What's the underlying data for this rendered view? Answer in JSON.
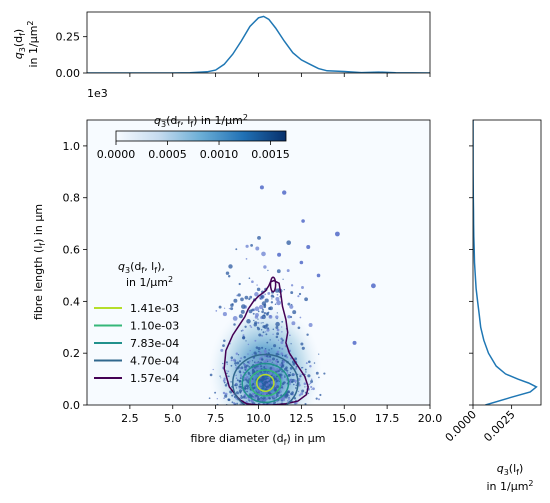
{
  "chart_data": [
    {
      "id": "top-marginal",
      "type": "line",
      "ylabel_line1": "q₃(d_f)",
      "ylabel_line2": "in 1/µm²",
      "ylabel_main": "q",
      "ylabel_sub": "3",
      "ylabel_paren": "(d",
      "ylabel_sub2": "f",
      "ylabel_close": ")",
      "ylabel_units": "in 1/µm",
      "ylabel_sup": "2",
      "xlim": [
        0,
        20
      ],
      "ylim": [
        0,
        0.42
      ],
      "yticks": [
        "0.00",
        "0.25"
      ],
      "ytick_values": [
        0,
        0.25
      ],
      "x": [
        0,
        5,
        6,
        7,
        7.5,
        8,
        8.5,
        9,
        9.5,
        10,
        10.3,
        10.6,
        11,
        11.5,
        12,
        12.5,
        13,
        13.5,
        14,
        15,
        16,
        17,
        18,
        19,
        20
      ],
      "y": [
        0,
        0,
        0.002,
        0.008,
        0.02,
        0.06,
        0.13,
        0.22,
        0.32,
        0.38,
        0.39,
        0.37,
        0.31,
        0.22,
        0.14,
        0.09,
        0.06,
        0.03,
        0.015,
        0.01,
        0.003,
        0.006,
        0.002,
        0.001,
        0
      ]
    },
    {
      "id": "right-marginal",
      "type": "line",
      "xlabel_main": "q",
      "xlabel_sub": "3",
      "xlabel_paren": "(l",
      "xlabel_sub2": "f",
      "xlabel_close": ")",
      "xlabel_units": "in 1/µm",
      "xlabel_sup": "2",
      "xticks": [
        "0.0000",
        "0.0025"
      ],
      "xtick_values": [
        0,
        0.0025
      ],
      "xlim": [
        0,
        0.0044
      ],
      "ylim": [
        0,
        1100
      ],
      "y": [
        0,
        30,
        50,
        70,
        85,
        100,
        120,
        150,
        200,
        250,
        300,
        350,
        400,
        450,
        500,
        550,
        600,
        650,
        700,
        750,
        800,
        850,
        900,
        1100
      ],
      "x": [
        0.0008,
        0.0025,
        0.0037,
        0.0041,
        0.0036,
        0.0029,
        0.0021,
        0.0015,
        0.001,
        0.0007,
        0.0005,
        0.0004,
        0.0003,
        0.0002,
        0.00015,
        0.0001,
        8e-05,
        5e-05,
        4e-05,
        3e-05,
        2e-05,
        1e-05,
        5e-06,
        0
      ]
    },
    {
      "id": "main-joint",
      "type": "heatmap",
      "xlabel": "fibre diameter (d",
      "xlabel_sub": "f",
      "xlabel_end": ") in µm",
      "ylabel": "fibre length (l",
      "ylabel_sub": "f",
      "ylabel_end": ") in µm",
      "y_multiplier": "1e3",
      "xlim": [
        0,
        20
      ],
      "ylim": [
        0,
        1.1
      ],
      "xticks": [
        "2.5",
        "5.0",
        "7.5",
        "10.0",
        "12.5",
        "15.0",
        "17.5",
        "20.0"
      ],
      "xtick_values": [
        2.5,
        5,
        7.5,
        10,
        12.5,
        15,
        17.5,
        20
      ],
      "yticks": [
        "0.0",
        "0.2",
        "0.4",
        "0.6",
        "0.8",
        "1.0"
      ],
      "ytick_values": [
        0,
        0.2,
        0.4,
        0.6,
        0.8,
        1.0
      ],
      "colorbar": {
        "title_main": "q",
        "title_sub": "3",
        "title_rest": "(d",
        "title_sub2": "f",
        "title_mid": ", l",
        "title_sub3": "f",
        "title_end": ") in 1/µm",
        "title_sup": "2",
        "ticks": [
          "0.0000",
          "0.0005",
          "0.0010",
          "0.0015"
        ],
        "tick_values": [
          0,
          0.0005,
          0.001,
          0.0015
        ],
        "range": [
          0,
          0.00165
        ]
      },
      "legend": {
        "title_main": "q",
        "title_sub": "3",
        "title_rest": "(d",
        "title_sub2": "f",
        "title_mid": ", l",
        "title_sub3": "f",
        "title_end": "),",
        "title_line2": "in 1/µm",
        "title_sup": "2",
        "placement": "left",
        "entries": [
          {
            "label": "1.41e-03",
            "color": "#b5de2b",
            "rx": 0.5,
            "ry": 0.032
          },
          {
            "label": "1.10e-03",
            "color": "#35b779",
            "rx": 0.9,
            "ry": 0.05
          },
          {
            "label": "7.83e-04",
            "color": "#21918c",
            "rx": 1.35,
            "ry": 0.075
          },
          {
            "label": "4.70e-04",
            "color": "#31688e",
            "rx": 1.9,
            "ry": 0.11
          },
          {
            "label": "1.57e-04",
            "color": "#440154",
            "rx": 0,
            "ry": 0
          }
        ]
      },
      "center": {
        "x": 10.4,
        "y": 0.085
      },
      "outer_contour": {
        "x": [
          8.9,
          8.3,
          8.0,
          8.1,
          8.5,
          8.9,
          9.2,
          9.4,
          9.7,
          10.0,
          10.4,
          10.6,
          10.7,
          10.9,
          11.2,
          11.3,
          11.4,
          11.6,
          11.7,
          11.6,
          11.8,
          12.2,
          12.7,
          12.9,
          12.8,
          12.3,
          11.6,
          10.8,
          10.0,
          9.3,
          8.9
        ],
        "y": [
          0.02,
          0.07,
          0.14,
          0.21,
          0.27,
          0.31,
          0.34,
          0.37,
          0.4,
          0.42,
          0.44,
          0.46,
          0.475,
          0.48,
          0.47,
          0.43,
          0.38,
          0.33,
          0.28,
          0.24,
          0.2,
          0.16,
          0.11,
          0.07,
          0.04,
          0.015,
          0.005,
          0.0,
          0.0,
          0.005,
          0.02
        ]
      },
      "island_contour": {
        "x": 10.85,
        "y": 0.465,
        "rx": 0.15,
        "ry": 0.028
      }
    }
  ]
}
